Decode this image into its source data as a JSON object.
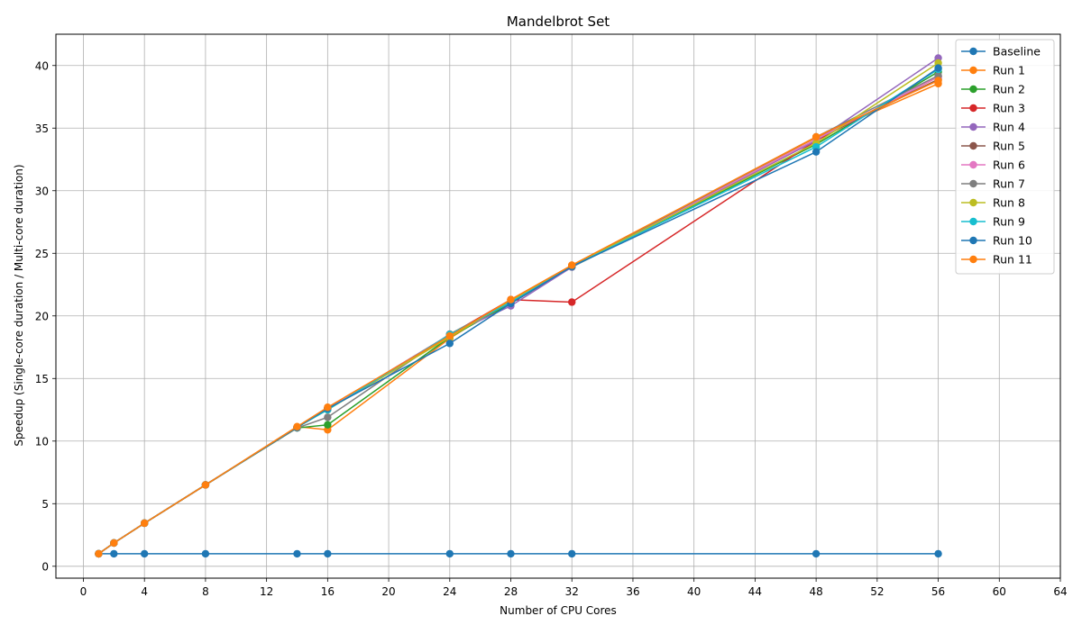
{
  "chart_data": {
    "type": "line",
    "title": "Mandelbrot Set",
    "xlabel": "Number of CPU Cores",
    "ylabel": "Speedup (Single-core duration / Multi-core duration)",
    "xlim": [
      -1.8,
      64
    ],
    "ylim": [
      -0.95,
      42.5
    ],
    "x": [
      1,
      2,
      4,
      8,
      14,
      16,
      24,
      28,
      32,
      48,
      56
    ],
    "xticks": [
      0,
      4,
      8,
      12,
      16,
      20,
      24,
      28,
      32,
      36,
      40,
      44,
      48,
      52,
      56,
      60,
      64
    ],
    "yticks": [
      0,
      5,
      10,
      15,
      20,
      25,
      30,
      35,
      40
    ],
    "grid": true,
    "legend_position": "top-right",
    "series": [
      {
        "name": "Baseline",
        "color": "#1f77b4",
        "values": [
          1,
          1,
          1,
          1,
          1,
          1,
          1,
          1,
          1,
          1,
          1
        ]
      },
      {
        "name": "Run 1",
        "color": "#ff7f0e",
        "values": [
          1.0,
          1.87,
          3.45,
          6.5,
          11.15,
          10.9,
          18.2,
          21.3,
          24.05,
          34.25,
          38.55
        ]
      },
      {
        "name": "Run 2",
        "color": "#2ca02c",
        "values": [
          1.0,
          1.86,
          3.44,
          6.5,
          11.05,
          11.3,
          18.3,
          21.0,
          23.9,
          33.7,
          39.5
        ]
      },
      {
        "name": "Run 3",
        "color": "#d62728",
        "values": [
          1.0,
          1.86,
          3.44,
          6.5,
          11.1,
          12.6,
          18.5,
          21.3,
          21.1,
          34.0,
          39.1
        ]
      },
      {
        "name": "Run 4",
        "color": "#9467bd",
        "values": [
          1.0,
          1.86,
          3.44,
          6.5,
          11.1,
          12.6,
          18.5,
          20.8,
          23.9,
          34.0,
          40.6
        ]
      },
      {
        "name": "Run 5",
        "color": "#8c564b",
        "values": [
          1.0,
          1.86,
          3.44,
          6.5,
          11.1,
          12.6,
          18.5,
          21.1,
          23.95,
          34.1,
          38.9
        ]
      },
      {
        "name": "Run 6",
        "color": "#e377c2",
        "values": [
          1.0,
          1.86,
          3.44,
          6.5,
          11.1,
          12.6,
          18.5,
          21.1,
          23.95,
          34.1,
          39.1
        ]
      },
      {
        "name": "Run 7",
        "color": "#7f7f7f",
        "values": [
          1.0,
          1.86,
          3.44,
          6.5,
          11.05,
          11.9,
          18.55,
          21.1,
          23.95,
          34.3,
          39.2
        ]
      },
      {
        "name": "Run 8",
        "color": "#bcbd22",
        "values": [
          1.0,
          1.86,
          3.44,
          6.5,
          11.1,
          12.5,
          18.3,
          21.2,
          24.0,
          33.8,
          40.2
        ]
      },
      {
        "name": "Run 9",
        "color": "#17becf",
        "values": [
          1.0,
          1.86,
          3.44,
          6.5,
          11.1,
          12.5,
          18.5,
          21.1,
          23.95,
          33.5,
          39.7
        ]
      },
      {
        "name": "Run 10",
        "color": "#1f77b4",
        "values": [
          1.0,
          1.86,
          3.44,
          6.5,
          11.1,
          12.6,
          17.8,
          21.0,
          23.95,
          33.1,
          39.8
        ]
      },
      {
        "name": "Run 11",
        "color": "#ff7f0e",
        "values": [
          1.0,
          1.86,
          3.44,
          6.5,
          11.15,
          12.7,
          18.4,
          21.3,
          24.05,
          34.3,
          38.8
        ]
      }
    ]
  }
}
